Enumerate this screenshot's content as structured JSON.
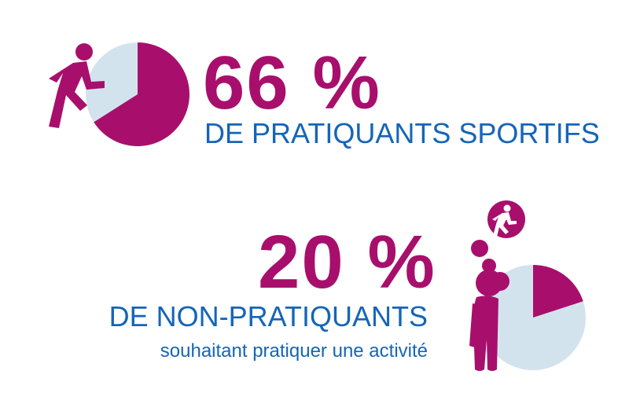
{
  "colors": {
    "accent": "#a80f6c",
    "text_blue": "#1565b7",
    "pie_bg": "#d3e3ee",
    "thought_fill": "#ffffff"
  },
  "icons": {
    "runner": "runner-icon",
    "thought_runner": "thought-runner-icon",
    "bubble": "thought-bubble",
    "person": "standing-person-icon"
  },
  "chart_data": [
    {
      "type": "pie",
      "values": [
        66,
        34
      ],
      "highlight_value": 66,
      "headline": "66 %",
      "label": "DE PRATIQUANTS SPORTIFS"
    },
    {
      "type": "pie",
      "values": [
        20,
        80
      ],
      "highlight_value": 20,
      "headline": "20 %",
      "label": "DE NON-PRATIQUANTS",
      "sublabel": "souhaitant pratiquer une activité"
    }
  ]
}
